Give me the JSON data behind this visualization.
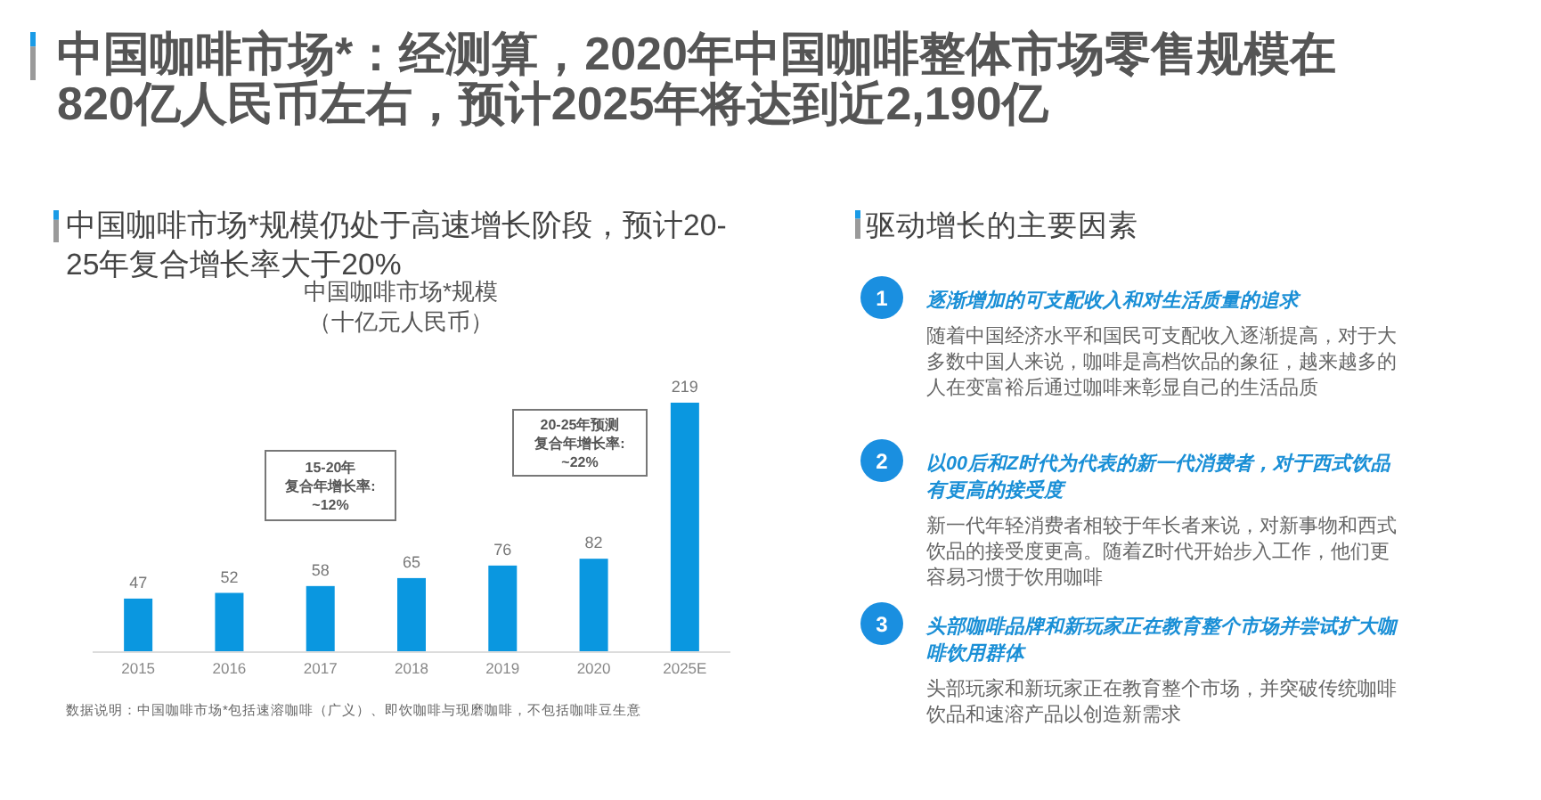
{
  "chart_data": [
    {
      "type": "bar",
      "title": "中国咖啡市场*：经测算，2020年中国咖啡整体市场零售规模在820亿人民币左右，预计2025年将达到近2,190亿",
      "subtitle": "中国咖啡市场*规模仍处于高速增长阶段，预计20-25年复合增长率大于20%",
      "categories": [
        "2015",
        "2016",
        "2017",
        "2018",
        "2019",
        "2020",
        "2025E"
      ],
      "values": [
        47,
        52,
        58,
        65,
        76,
        82,
        219
      ],
      "color": "#0a97e0",
      "data_labels": true,
      "annotations": [
        "中国咖啡市场*规模（十亿元人民币）",
        "15-20年",
        "复合年增长率:",
        "~12%",
        "20-25年预测",
        "复合年增长率:",
        "~22%",
        "数据说明：中国咖啡市场*包括速溶咖啡（广义）、即饮咖啡与现磨咖啡，不包括咖啡豆生意"
      ]
    },
    {
      "type": "other",
      "title": "驱动增长的主要因素",
      "annotations": [
        "1",
        "逐渐增加的可支配收入和对生活质量的追求",
        "随着中国经济水平和国民可支配收入逐渐提高，对于大多数中国人来说，咖啡是高档饮品的象征，越来越多的人在变富裕后通过咖啡来彰显自己的生活品质",
        "2",
        "以00后和Z时代为代表的新一代消费者，对于西式饮品有更高的接受度",
        "新一代年轻消费者相较于年长者来说，对新事物和西式饮品的接受度更高。随着Z时代开始步入工作，他们更容易习惯于饮用咖啡",
        "3",
        "头部咖啡品牌和新玩家正在教育整个市场并尝试扩大咖啡饮用群体",
        "头部玩家和新玩家正在教育整个市场，并突破传统咖啡饮品和速溶产品以创造新需求"
      ]
    }
  ]
}
